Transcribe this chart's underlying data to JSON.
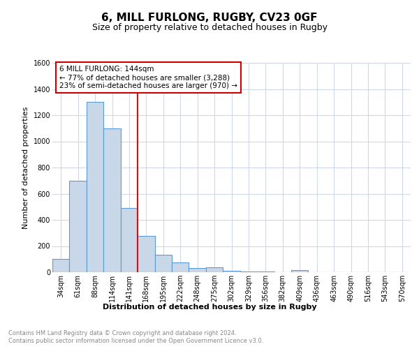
{
  "title1": "6, MILL FURLONG, RUGBY, CV23 0GF",
  "title2": "Size of property relative to detached houses in Rugby",
  "xlabel": "Distribution of detached houses by size in Rugby",
  "ylabel": "Number of detached properties",
  "categories": [
    "34sqm",
    "61sqm",
    "88sqm",
    "114sqm",
    "141sqm",
    "168sqm",
    "195sqm",
    "222sqm",
    "248sqm",
    "275sqm",
    "302sqm",
    "329sqm",
    "356sqm",
    "382sqm",
    "409sqm",
    "436sqm",
    "463sqm",
    "490sqm",
    "516sqm",
    "543sqm",
    "570sqm"
  ],
  "values": [
    100,
    700,
    1300,
    1100,
    490,
    280,
    135,
    75,
    30,
    35,
    12,
    5,
    3,
    2,
    15,
    2,
    0,
    0,
    0,
    0,
    0
  ],
  "bar_color": "#c8d8e8",
  "bar_edge_color": "#5b9bd5",
  "red_line_index": 4.5,
  "annotation_text": "6 MILL FURLONG: 144sqm\n← 77% of detached houses are smaller (3,288)\n23% of semi-detached houses are larger (970) →",
  "annotation_box_color": "#ffffff",
  "annotation_box_edge": "#cc0000",
  "ylim": [
    0,
    1600
  ],
  "yticks": [
    0,
    200,
    400,
    600,
    800,
    1000,
    1200,
    1400,
    1600
  ],
  "footer1": "Contains HM Land Registry data © Crown copyright and database right 2024.",
  "footer2": "Contains public sector information licensed under the Open Government Licence v3.0.",
  "bg_color": "#ffffff",
  "grid_color": "#d0d8e8",
  "title1_fontsize": 11,
  "title2_fontsize": 9,
  "xlabel_fontsize": 8,
  "ylabel_fontsize": 8,
  "tick_fontsize": 7,
  "footer_fontsize": 6,
  "ann_fontsize": 7.5
}
